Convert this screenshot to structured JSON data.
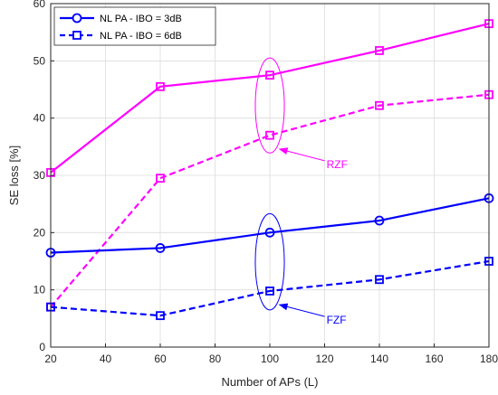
{
  "chart_data": {
    "type": "line",
    "title": "",
    "xlabel": "Number of APs (L)",
    "ylabel": "SE loss [%]",
    "x": [
      20,
      60,
      100,
      140,
      180
    ],
    "xlim": [
      20,
      180
    ],
    "ylim": [
      0,
      60
    ],
    "xticks": [
      20,
      40,
      60,
      80,
      100,
      120,
      140,
      160,
      180
    ],
    "yticks": [
      0,
      10,
      20,
      30,
      40,
      50,
      60
    ],
    "grid": true,
    "legend_position": "top-left",
    "legend": [
      {
        "label": "NL PA - IBO = 3dB",
        "marker": "circle",
        "style": "solid",
        "color": "#0000ff"
      },
      {
        "label": "NL PA - IBO = 6dB",
        "marker": "square",
        "style": "dashed",
        "color": "#0000ff"
      }
    ],
    "series": [
      {
        "group": "RZF",
        "ibo": "3dB",
        "style": "solid",
        "marker": "square",
        "color": "#ff00ff",
        "values": [
          30.5,
          45.5,
          47.5,
          51.8,
          56.5
        ]
      },
      {
        "group": "RZF",
        "ibo": "6dB",
        "style": "dashed",
        "marker": "square",
        "color": "#ff00ff",
        "values": [
          7.0,
          29.5,
          37.0,
          42.2,
          44.1
        ]
      },
      {
        "group": "FZF",
        "ibo": "3dB",
        "style": "solid",
        "marker": "circle",
        "color": "#0000ff",
        "values": [
          16.5,
          17.3,
          20.0,
          22.1,
          26.0
        ]
      },
      {
        "group": "FZF",
        "ibo": "6dB",
        "style": "dashed",
        "marker": "square",
        "color": "#0000ff",
        "values": [
          7.0,
          5.5,
          9.8,
          11.8,
          15.0
        ]
      }
    ],
    "annotations": [
      {
        "text": "RZF",
        "color": "#ff00ff",
        "ellipse_center": [
          100,
          42.2
        ],
        "ellipse_half_width": 5.3,
        "ellipse_half_height": 8.3,
        "arrow_tip": [
          103.5,
          34.6
        ]
      },
      {
        "text": "FZF",
        "color": "#0000ff",
        "ellipse_center": [
          100,
          14.9
        ],
        "ellipse_half_width": 5.3,
        "ellipse_half_height": 8.4,
        "arrow_tip": [
          103.5,
          7.4
        ]
      }
    ]
  }
}
